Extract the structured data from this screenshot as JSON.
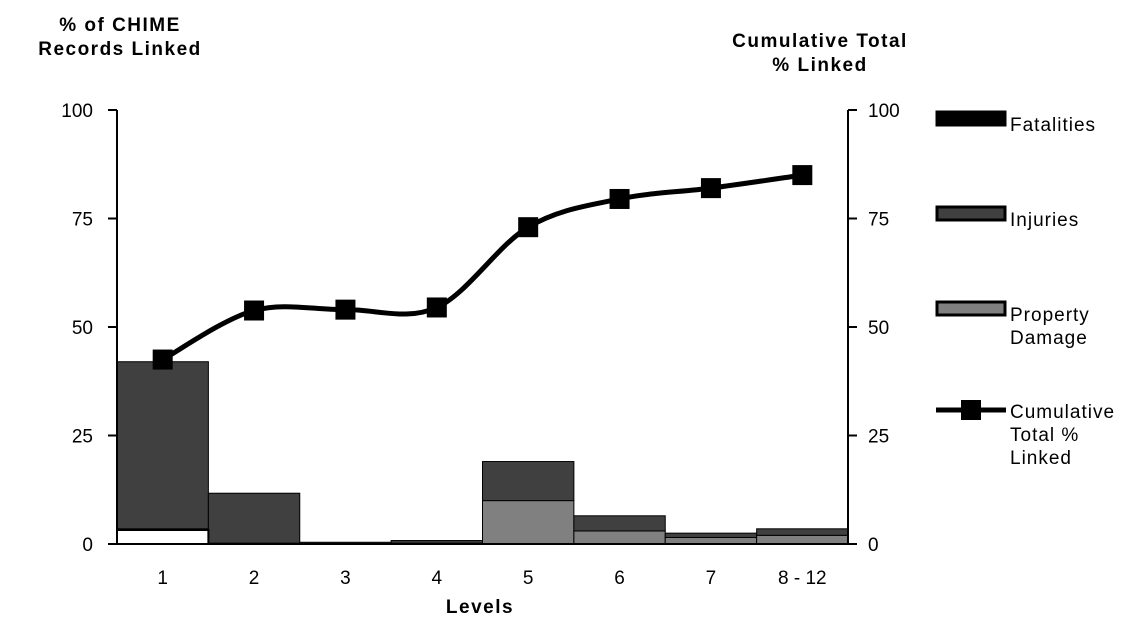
{
  "chart_data": {
    "type": "bar",
    "left_axis_title": [
      "% of CHIME",
      "Records Linked"
    ],
    "right_axis_title": [
      "Cumulative Total",
      "% Linked"
    ],
    "xlabel": "Levels",
    "ylim": [
      0,
      100
    ],
    "yticks": [
      "0",
      "25",
      "50",
      "75",
      "100"
    ],
    "categories": [
      "1",
      "2",
      "3",
      "4",
      "5",
      "6",
      "7",
      "8 - 12"
    ],
    "series": [
      {
        "name": "Fatalities",
        "kind": "stacked-bar",
        "color": "#000000",
        "values": [
          0,
          0,
          0,
          0,
          0,
          0,
          0,
          0
        ]
      },
      {
        "name": "Injuries",
        "kind": "stacked-bar",
        "color": "#404040",
        "values": [
          38.5,
          11.5,
          0.3,
          0.6,
          9,
          3.5,
          1,
          1.5
        ]
      },
      {
        "name": "Property Damage",
        "kind": "stacked-bar",
        "color": "#808080",
        "values": [
          3.5,
          0.2,
          0.1,
          0.2,
          10,
          3,
          1.5,
          2
        ]
      },
      {
        "name": "Cumulative Total % Linked",
        "kind": "line",
        "color": "#000000",
        "values": [
          42.5,
          53.8,
          54,
          54.5,
          73,
          79.5,
          82,
          85
        ]
      }
    ],
    "legend": [
      {
        "label": [
          "Fatalities"
        ],
        "swatch": "fatalities"
      },
      {
        "label": [
          "Injuries"
        ],
        "swatch": "injuries"
      },
      {
        "label": [
          "Property",
          "Damage"
        ],
        "swatch": "property"
      },
      {
        "label": [
          "Cumulative",
          "Total %",
          "Linked"
        ],
        "swatch": "line"
      }
    ],
    "legend_placement": "right",
    "grid": false
  }
}
